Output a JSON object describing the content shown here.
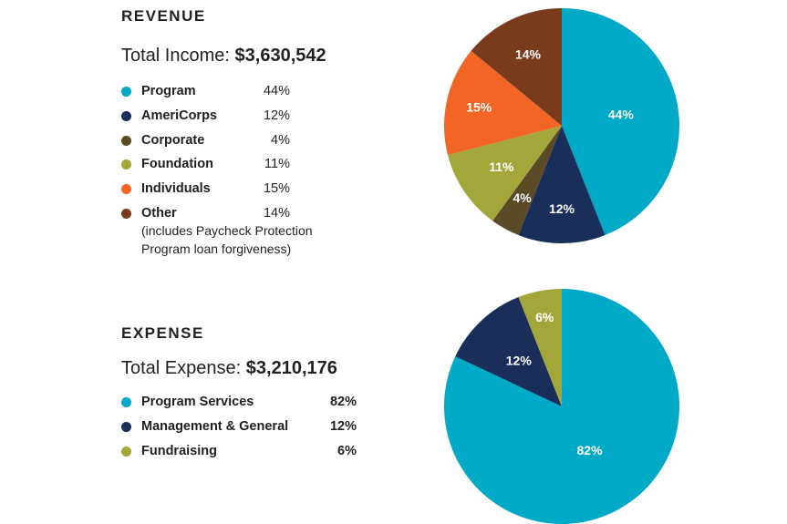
{
  "revenue": {
    "heading": "REVENUE",
    "total_label": "Total Income:",
    "total_value": "$3,630,542",
    "other_note": "(includes Paycheck Protection Program loan forgiveness)"
  },
  "expense": {
    "heading": "EXPENSE",
    "total_label": "Total Expense:",
    "total_value": "$3,210,176"
  },
  "chart_data": [
    {
      "type": "pie",
      "title": "REVENUE",
      "categories": [
        "Program",
        "AmeriCorps",
        "Corporate",
        "Foundation",
        "Individuals",
        "Other"
      ],
      "values": [
        44,
        12,
        4,
        11,
        15,
        14
      ],
      "labels": [
        "44%",
        "12%",
        "4%",
        "11%",
        "15%",
        "14%"
      ],
      "colors": [
        "#00a9c6",
        "#1a2e5a",
        "#5a4a26",
        "#a3a73a",
        "#f26524",
        "#7a3a1c"
      ],
      "legend_position": "left"
    },
    {
      "type": "pie",
      "title": "EXPENSE",
      "categories": [
        "Program Services",
        "Management & General",
        "Fundraising"
      ],
      "values": [
        82,
        12,
        6
      ],
      "labels": [
        "82%",
        "12%",
        "6%"
      ],
      "colors": [
        "#00a9c6",
        "#1a2e5a",
        "#a3a73a"
      ],
      "legend_position": "left"
    }
  ]
}
